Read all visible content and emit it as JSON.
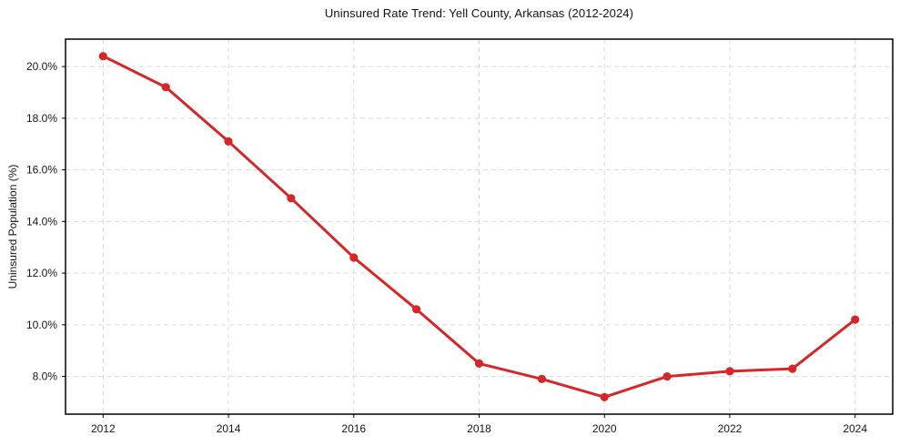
{
  "page": {
    "background": "#ffffff"
  },
  "chart_data": {
    "type": "line",
    "title": "Uninsured Rate Trend: Yell County, Arkansas (2012-2024)",
    "xlabel": "",
    "ylabel": "Uninsured Population (%)",
    "x": [
      2012,
      2013,
      2014,
      2015,
      2016,
      2017,
      2018,
      2019,
      2020,
      2021,
      2022,
      2023,
      2024
    ],
    "series": [
      {
        "name": "Uninsured rate",
        "values": [
          20.4,
          19.2,
          17.1,
          14.9,
          12.6,
          10.6,
          8.5,
          7.9,
          7.2,
          8.0,
          8.2,
          8.3,
          10.2
        ]
      }
    ],
    "x_ticks": [
      2012,
      2014,
      2016,
      2018,
      2020,
      2022,
      2024
    ],
    "x_tick_labels": [
      "2012",
      "2014",
      "2016",
      "2018",
      "2020",
      "2022",
      "2024"
    ],
    "y_ticks": [
      8,
      10,
      12,
      14,
      16,
      18,
      20
    ],
    "y_tick_labels": [
      "8.0%",
      "10.0%",
      "12.0%",
      "14.0%",
      "16.0%",
      "18.0%",
      "20.0%"
    ],
    "xlim": [
      2011.4,
      2024.6
    ],
    "ylim": [
      6.54,
      21.06
    ],
    "grid": true,
    "grid_style": "dashed",
    "legend": false,
    "marker": "circle",
    "colors": {
      "line": "#d62728",
      "marker": "#d62728",
      "grid": "#d9d9d9",
      "axis": "#000000",
      "text": "#111111"
    }
  }
}
